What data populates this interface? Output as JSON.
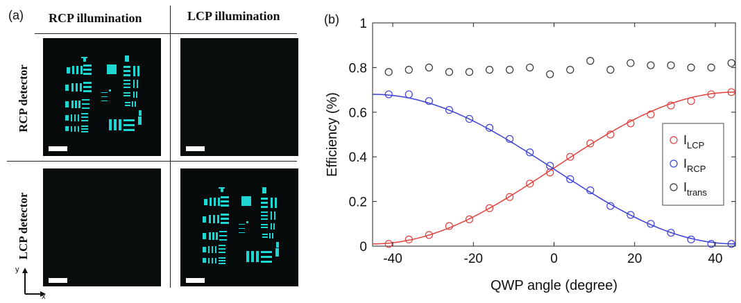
{
  "panel_a": {
    "label": "(a)",
    "columns": [
      "RCP illumination",
      "LCP illumination"
    ],
    "rows": [
      "RCP detector",
      "LCP detector"
    ],
    "axes": {
      "y": "y",
      "x": "x"
    }
  },
  "panel_b": {
    "label": "(b)"
  },
  "chart_data": {
    "type": "scatter",
    "xlabel": "QWP angle (degree)",
    "ylabel": "Efficiency (%)",
    "xlim": [
      -45,
      45
    ],
    "ylim": [
      0,
      1
    ],
    "xticks": [
      -40,
      -20,
      0,
      20,
      40
    ],
    "yticks": [
      0,
      0.2,
      0.4,
      0.6,
      0.8,
      1
    ],
    "ytick_labels": [
      "0",
      "0.2",
      "0.4",
      "0.6",
      "0.8",
      "1"
    ],
    "legend_position": "right",
    "series": [
      {
        "name": "I_LCP",
        "legend_main": "I",
        "legend_sub": "LCP",
        "color": "#e0403c",
        "marker": "circle",
        "fit_line": true,
        "x": [
          -41,
          -36,
          -31,
          -26,
          -21,
          -16,
          -11,
          -6,
          -1,
          4,
          9,
          14,
          19,
          24,
          29,
          34,
          39,
          44
        ],
        "y": [
          0.01,
          0.03,
          0.05,
          0.09,
          0.12,
          0.17,
          0.22,
          0.28,
          0.33,
          0.4,
          0.46,
          0.5,
          0.55,
          0.59,
          0.63,
          0.65,
          0.68,
          0.69
        ]
      },
      {
        "name": "I_RCP",
        "legend_main": "I",
        "legend_sub": "RCP",
        "color": "#3b3fd8",
        "marker": "circle",
        "fit_line": true,
        "x": [
          -41,
          -36,
          -31,
          -26,
          -21,
          -16,
          -11,
          -6,
          -1,
          4,
          9,
          14,
          19,
          24,
          29,
          34,
          39,
          44
        ],
        "y": [
          0.68,
          0.68,
          0.65,
          0.61,
          0.57,
          0.53,
          0.48,
          0.42,
          0.36,
          0.3,
          0.25,
          0.18,
          0.14,
          0.1,
          0.06,
          0.03,
          0.01,
          0.01
        ]
      },
      {
        "name": "I_trans",
        "legend_main": "I",
        "legend_sub": "trans",
        "color": "#333333",
        "marker": "circle",
        "fit_line": false,
        "x": [
          -41,
          -36,
          -31,
          -26,
          -21,
          -16,
          -11,
          -6,
          -1,
          4,
          9,
          14,
          19,
          24,
          29,
          34,
          39,
          44
        ],
        "y": [
          0.78,
          0.79,
          0.8,
          0.78,
          0.78,
          0.79,
          0.79,
          0.8,
          0.77,
          0.79,
          0.83,
          0.79,
          0.82,
          0.81,
          0.81,
          0.8,
          0.8,
          0.82
        ]
      }
    ]
  }
}
